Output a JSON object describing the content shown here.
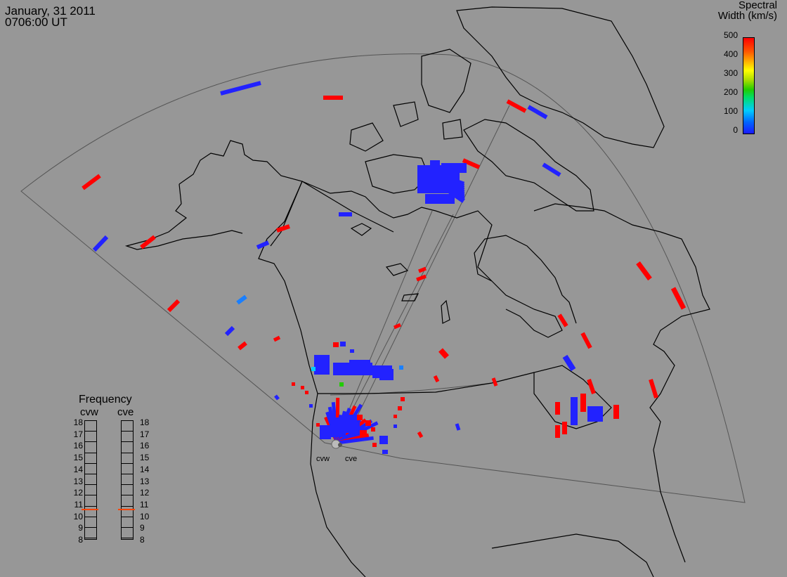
{
  "header": {
    "date": "January, 31 2011",
    "time": "0706:00 UT"
  },
  "colorbar": {
    "title_line1": "Spectral",
    "title_line2": "Width (km/s)",
    "ticks": [
      "500",
      "400",
      "300",
      "200",
      "100",
      "0"
    ],
    "colors": {
      "high": "#ff0000",
      "low": "#1a1aff"
    }
  },
  "frequency_panel": {
    "title": "Frequency",
    "radars": [
      "cvw",
      "cve"
    ],
    "scale": [
      "18",
      "17",
      "16",
      "15",
      "14",
      "13",
      "12",
      "11",
      "10",
      "9",
      "8"
    ],
    "indicator_color": "#ff4400"
  },
  "sites": {
    "cvw": "cvw",
    "cve": "cve"
  },
  "colors": {
    "background": "#979797",
    "coastline": "#000000",
    "fov_outline": "#555555",
    "scatter_blue": "#2222ff",
    "scatter_red": "#ff0000"
  }
}
